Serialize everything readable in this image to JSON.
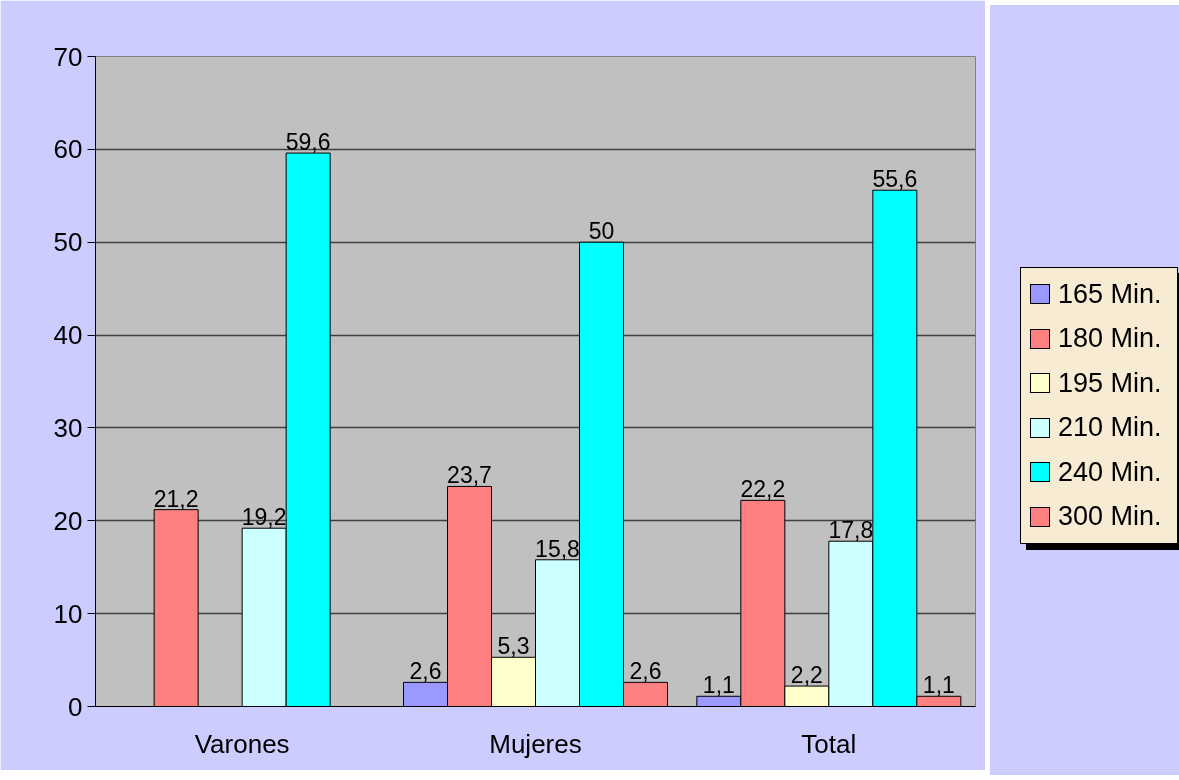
{
  "chart_data": {
    "type": "bar",
    "categories": [
      "Varones",
      "Mujeres",
      "Total"
    ],
    "series": [
      {
        "name": "165 Min.",
        "color": "#9999ff",
        "values": [
          null,
          2.6,
          1.1
        ],
        "value_labels": [
          null,
          "2,6",
          "1,1"
        ]
      },
      {
        "name": "180 Min.",
        "color": "#ff8080",
        "values": [
          21.2,
          23.7,
          22.2
        ],
        "value_labels": [
          "21,2",
          "23,7",
          "22,2"
        ]
      },
      {
        "name": "195 Min.",
        "color": "#ffffcc",
        "values": [
          null,
          5.3,
          2.2
        ],
        "value_labels": [
          null,
          "5,3",
          "2,2"
        ]
      },
      {
        "name": "210 Min.",
        "color": "#ccffff",
        "values": [
          19.2,
          15.8,
          17.8
        ],
        "value_labels": [
          "19,2",
          "15,8",
          "17,8"
        ]
      },
      {
        "name": "240 Min.",
        "color": "#00ffff",
        "values": [
          59.6,
          50,
          55.6
        ],
        "value_labels": [
          "59,6",
          "50",
          "55,6"
        ]
      },
      {
        "name": "300 Min.",
        "color": "#ff8080",
        "values": [
          null,
          2.6,
          1.1
        ],
        "value_labels": [
          null,
          "2,6",
          "1,1"
        ]
      }
    ],
    "ylim": [
      0,
      70
    ],
    "yticks": [
      0,
      10,
      20,
      30,
      40,
      50,
      60,
      70
    ],
    "grid": "y",
    "legend": "right"
  }
}
